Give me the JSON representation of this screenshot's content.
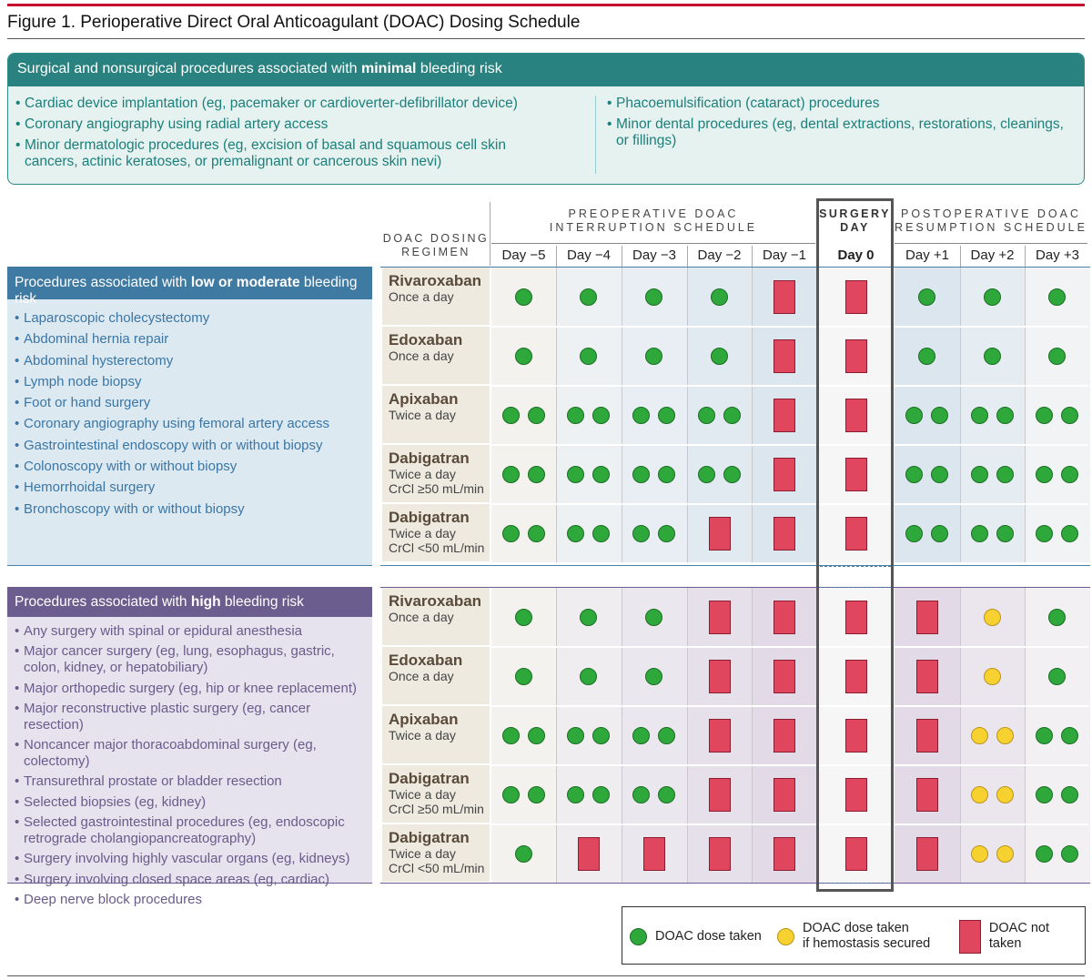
{
  "figure_title": "Figure 1. Perioperative Direct Oral Anticoagulant (DOAC) Dosing Schedule",
  "minimal": {
    "head_pre": "Surgical and nonsurgical procedures associated with ",
    "head_bold": "minimal",
    "head_post": " bleeding risk",
    "left_items": [
      "Cardiac device implantation (eg, pacemaker or cardioverter-defibrillator device)",
      "Coronary angiography using radial artery access",
      "Minor dermatologic procedures (eg, excision of basal and squamous cell skin cancers, actinic keratoses, or premalignant or cancerous skin nevi)"
    ],
    "right_items": [
      "Phacoemulsification (cataract) procedures",
      "Minor dental procedures (eg, dental extractions, restorations, cleanings, or fillings)"
    ]
  },
  "low": {
    "head_pre": "Procedures associated with ",
    "head_bold": "low or moderate",
    "head_post": " bleeding risk",
    "items": [
      "Laparoscopic cholecystectomy",
      "Abdominal hernia repair",
      "Abdominal hysterectomy",
      "Lymph node biopsy",
      "Foot or hand surgery",
      "Coronary angiography using femoral artery access",
      "Gastrointestinal endoscopy with or without biopsy",
      "Colonoscopy with or without biopsy",
      "Hemorrhoidal surgery",
      "Bronchoscopy with or without biopsy"
    ]
  },
  "high": {
    "head_pre": "Procedures associated with ",
    "head_bold": "high",
    "head_post": " bleeding risk",
    "items": [
      "Any surgery with spinal or epidural anesthesia",
      "Major cancer surgery (eg, lung, esophagus, gastric, colon, kidney, or hepatobiliary)",
      "Major orthopedic surgery (eg, hip or knee replacement)",
      "Major reconstructive plastic surgery (eg, cancer resection)",
      "Noncancer major thoracoabdominal surgery (eg, colectomy)",
      "Transurethral prostate or bladder resection",
      "Selected biopsies (eg, kidney)",
      "Selected gastrointestinal procedures (eg, endoscopic retrograde cholangiopancreatography)",
      "Surgery involving highly vascular organs (eg, kidneys)",
      "Surgery involving closed space areas (eg, cardiac)",
      "Deep nerve block procedures"
    ]
  },
  "headers": {
    "dosing_line1": "DOAC DOSING",
    "dosing_line2": "REGIMEN",
    "pre_line1": "PREOPERATIVE DOAC",
    "pre_line2": "INTERRUPTION SCHEDULE",
    "surgery_line1": "SURGERY",
    "surgery_line2": "DAY",
    "post_line1": "POSTOPERATIVE DOAC",
    "post_line2": "RESUMPTION SCHEDULE"
  },
  "days": [
    "Day −5",
    "Day −4",
    "Day −3",
    "Day −2",
    "Day −1",
    "Day 0",
    "Day +1",
    "Day +2",
    "Day +3"
  ],
  "legend": {
    "taken": "DOAC dose taken",
    "conditional_line1": "DOAC dose taken",
    "conditional_line2": "if hemostasis secured",
    "not_taken": "DOAC not taken"
  },
  "schedule": {
    "low": [
      {
        "drug": "Rivaroxaban",
        "freq": "Once a day",
        "crcl": "",
        "cells": [
          "G1",
          "G1",
          "G1",
          "G1",
          "X",
          "X",
          "G1",
          "G1",
          "G1"
        ]
      },
      {
        "drug": "Edoxaban",
        "freq": "Once a day",
        "crcl": "",
        "cells": [
          "G1",
          "G1",
          "G1",
          "G1",
          "X",
          "X",
          "G1",
          "G1",
          "G1"
        ]
      },
      {
        "drug": "Apixaban",
        "freq": "Twice a day",
        "crcl": "",
        "cells": [
          "G2",
          "G2",
          "G2",
          "G2",
          "X",
          "X",
          "G2",
          "G2",
          "G2"
        ]
      },
      {
        "drug": "Dabigatran",
        "freq": "Twice a day",
        "crcl": "CrCl ≥50 mL/min",
        "cells": [
          "G2",
          "G2",
          "G2",
          "G2",
          "X",
          "X",
          "G2",
          "G2",
          "G2"
        ]
      },
      {
        "drug": "Dabigatran",
        "freq": "Twice a day",
        "crcl": "CrCl <50 mL/min",
        "cells": [
          "G2",
          "G2",
          "G2",
          "X",
          "X",
          "X",
          "G2",
          "G2",
          "G2"
        ]
      }
    ],
    "high": [
      {
        "drug": "Rivaroxaban",
        "freq": "Once a day",
        "crcl": "",
        "cells": [
          "G1",
          "G1",
          "G1",
          "X",
          "X",
          "X",
          "X",
          "Y1",
          "G1"
        ]
      },
      {
        "drug": "Edoxaban",
        "freq": "Once a day",
        "crcl": "",
        "cells": [
          "G1",
          "G1",
          "G1",
          "X",
          "X",
          "X",
          "X",
          "Y1",
          "G1"
        ]
      },
      {
        "drug": "Apixaban",
        "freq": "Twice a day",
        "crcl": "",
        "cells": [
          "G2",
          "G2",
          "G2",
          "X",
          "X",
          "X",
          "X",
          "Y2",
          "G2"
        ]
      },
      {
        "drug": "Dabigatran",
        "freq": "Twice a day",
        "crcl": "CrCl ≥50 mL/min",
        "cells": [
          "G2",
          "G2",
          "G2",
          "X",
          "X",
          "X",
          "X",
          "Y2",
          "G2"
        ]
      },
      {
        "drug": "Dabigatran",
        "freq": "Twice a day",
        "crcl": "CrCl <50 mL/min",
        "cells": [
          "G1",
          "X",
          "X",
          "X",
          "X",
          "X",
          "X",
          "Y2",
          "G2"
        ]
      }
    ]
  },
  "colors": {
    "taken": "#2ea83a",
    "conditional": "#f6d12f",
    "not_taken": "#e0475f",
    "low_accent": "#3f7aa3",
    "high_accent": "#6c5d8f",
    "minimal_accent": "#2a8280"
  }
}
